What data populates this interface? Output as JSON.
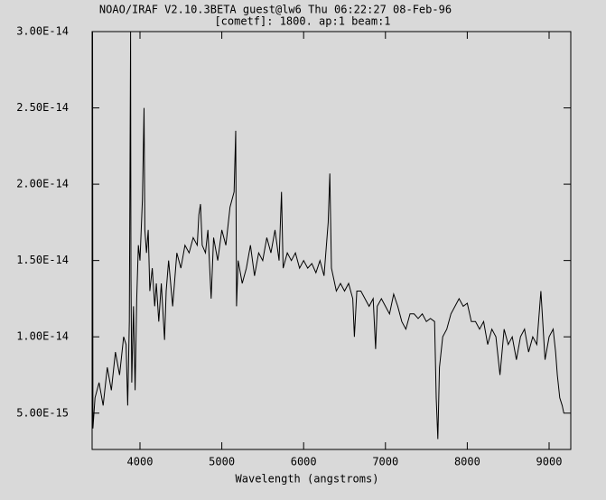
{
  "chart_data": {
    "type": "line",
    "title": "NOAO/IRAF V2.10.3BETA guest@lw6 Thu 06:22:27 08-Feb-96",
    "subtitle": "[cometf]:  1800. ap:1 beam:1",
    "x_label": "Wavelength (angstroms)",
    "color": "#000000",
    "xlim": [
      3415,
      9265
    ],
    "ylim": [
      2.62e-15,
      3e-14
    ],
    "xticks": [
      4000,
      5000,
      6000,
      7000,
      8000,
      9000
    ],
    "yticks": [
      {
        "value": 5e-15,
        "label": "5.00E-15"
      },
      {
        "value": 1e-14,
        "label": "1.00E-14"
      },
      {
        "value": 1.5e-14,
        "label": "1.50E-14"
      },
      {
        "value": 2e-14,
        "label": "2.00E-14"
      },
      {
        "value": 2.5e-14,
        "label": "2.50E-14"
      },
      {
        "value": 3e-14,
        "label": "3.00E-14"
      }
    ],
    "x": [
      3420,
      3425,
      3450,
      3500,
      3550,
      3600,
      3650,
      3700,
      3750,
      3800,
      3830,
      3850,
      3870,
      3885,
      3890,
      3900,
      3920,
      3940,
      3960,
      3980,
      4000,
      4030,
      4050,
      4060,
      4080,
      4100,
      4120,
      4150,
      4180,
      4200,
      4230,
      4260,
      4300,
      4320,
      4350,
      4400,
      4450,
      4500,
      4550,
      4600,
      4650,
      4700,
      4720,
      4740,
      4760,
      4800,
      4830,
      4870,
      4900,
      4950,
      5000,
      5050,
      5100,
      5150,
      5170,
      5180,
      5200,
      5250,
      5300,
      5350,
      5400,
      5450,
      5500,
      5550,
      5600,
      5650,
      5700,
      5730,
      5750,
      5800,
      5850,
      5900,
      5950,
      6000,
      6050,
      6100,
      6150,
      6200,
      6250,
      6300,
      6320,
      6340,
      6380,
      6400,
      6450,
      6500,
      6550,
      6600,
      6620,
      6650,
      6700,
      6750,
      6800,
      6850,
      6880,
      6900,
      6950,
      7000,
      7050,
      7100,
      7150,
      7200,
      7250,
      7300,
      7350,
      7400,
      7450,
      7500,
      7550,
      7600,
      7620,
      7640,
      7660,
      7700,
      7750,
      7800,
      7850,
      7900,
      7950,
      8000,
      8050,
      8100,
      8150,
      8200,
      8250,
      8300,
      8350,
      8400,
      8450,
      8500,
      8550,
      8600,
      8650,
      8700,
      8750,
      8800,
      8850,
      8900,
      8950,
      9000,
      9050,
      9080,
      9100,
      9130,
      9160,
      9180
    ],
    "values": [
      3e-14,
      4e-15,
      6e-15,
      7e-15,
      5.5e-15,
      8e-15,
      6.5e-15,
      9e-15,
      7.5e-15,
      1e-14,
      9.5e-15,
      5.5e-15,
      1.1e-14,
      3e-14,
      1.4e-14,
      7e-15,
      1.2e-14,
      6.5e-15,
      1.25e-14,
      1.6e-14,
      1.5e-14,
      1.9e-14,
      2.5e-14,
      1.7e-14,
      1.55e-14,
      1.7e-14,
      1.3e-14,
      1.45e-14,
      1.2e-14,
      1.35e-14,
      1.1e-14,
      1.35e-14,
      9.8e-15,
      1.3e-14,
      1.5e-14,
      1.2e-14,
      1.55e-14,
      1.45e-14,
      1.6e-14,
      1.55e-14,
      1.65e-14,
      1.6e-14,
      1.8e-14,
      1.87e-14,
      1.6e-14,
      1.55e-14,
      1.7e-14,
      1.25e-14,
      1.65e-14,
      1.5e-14,
      1.7e-14,
      1.6e-14,
      1.85e-14,
      1.95e-14,
      2.35e-14,
      1.2e-14,
      1.5e-14,
      1.35e-14,
      1.45e-14,
      1.6e-14,
      1.4e-14,
      1.55e-14,
      1.5e-14,
      1.65e-14,
      1.55e-14,
      1.7e-14,
      1.5e-14,
      1.95e-14,
      1.45e-14,
      1.55e-14,
      1.5e-14,
      1.55e-14,
      1.45e-14,
      1.5e-14,
      1.45e-14,
      1.48e-14,
      1.42e-14,
      1.5e-14,
      1.4e-14,
      1.75e-14,
      2.07e-14,
      1.45e-14,
      1.35e-14,
      1.3e-14,
      1.35e-14,
      1.3e-14,
      1.35e-14,
      1.25e-14,
      1e-14,
      1.3e-14,
      1.3e-14,
      1.25e-14,
      1.2e-14,
      1.25e-14,
      9.2e-15,
      1.2e-14,
      1.25e-14,
      1.2e-14,
      1.15e-14,
      1.28e-14,
      1.2e-14,
      1.1e-14,
      1.05e-14,
      1.15e-14,
      1.15e-14,
      1.12e-14,
      1.15e-14,
      1.1e-14,
      1.12e-14,
      1.1e-14,
      6e-15,
      3.3e-15,
      8e-15,
      1e-14,
      1.05e-14,
      1.15e-14,
      1.2e-14,
      1.25e-14,
      1.2e-14,
      1.22e-14,
      1.1e-14,
      1.1e-14,
      1.05e-14,
      1.1e-14,
      9.5e-15,
      1.05e-14,
      1e-14,
      7.5e-15,
      1.05e-14,
      9.5e-15,
      1e-14,
      8.5e-15,
      1e-14,
      1.05e-14,
      9e-15,
      1e-14,
      9.5e-15,
      1.3e-14,
      8.5e-15,
      1e-14,
      1.05e-14,
      9e-15,
      7.5e-15,
      6e-15,
      5.5e-15,
      5e-15
    ]
  }
}
